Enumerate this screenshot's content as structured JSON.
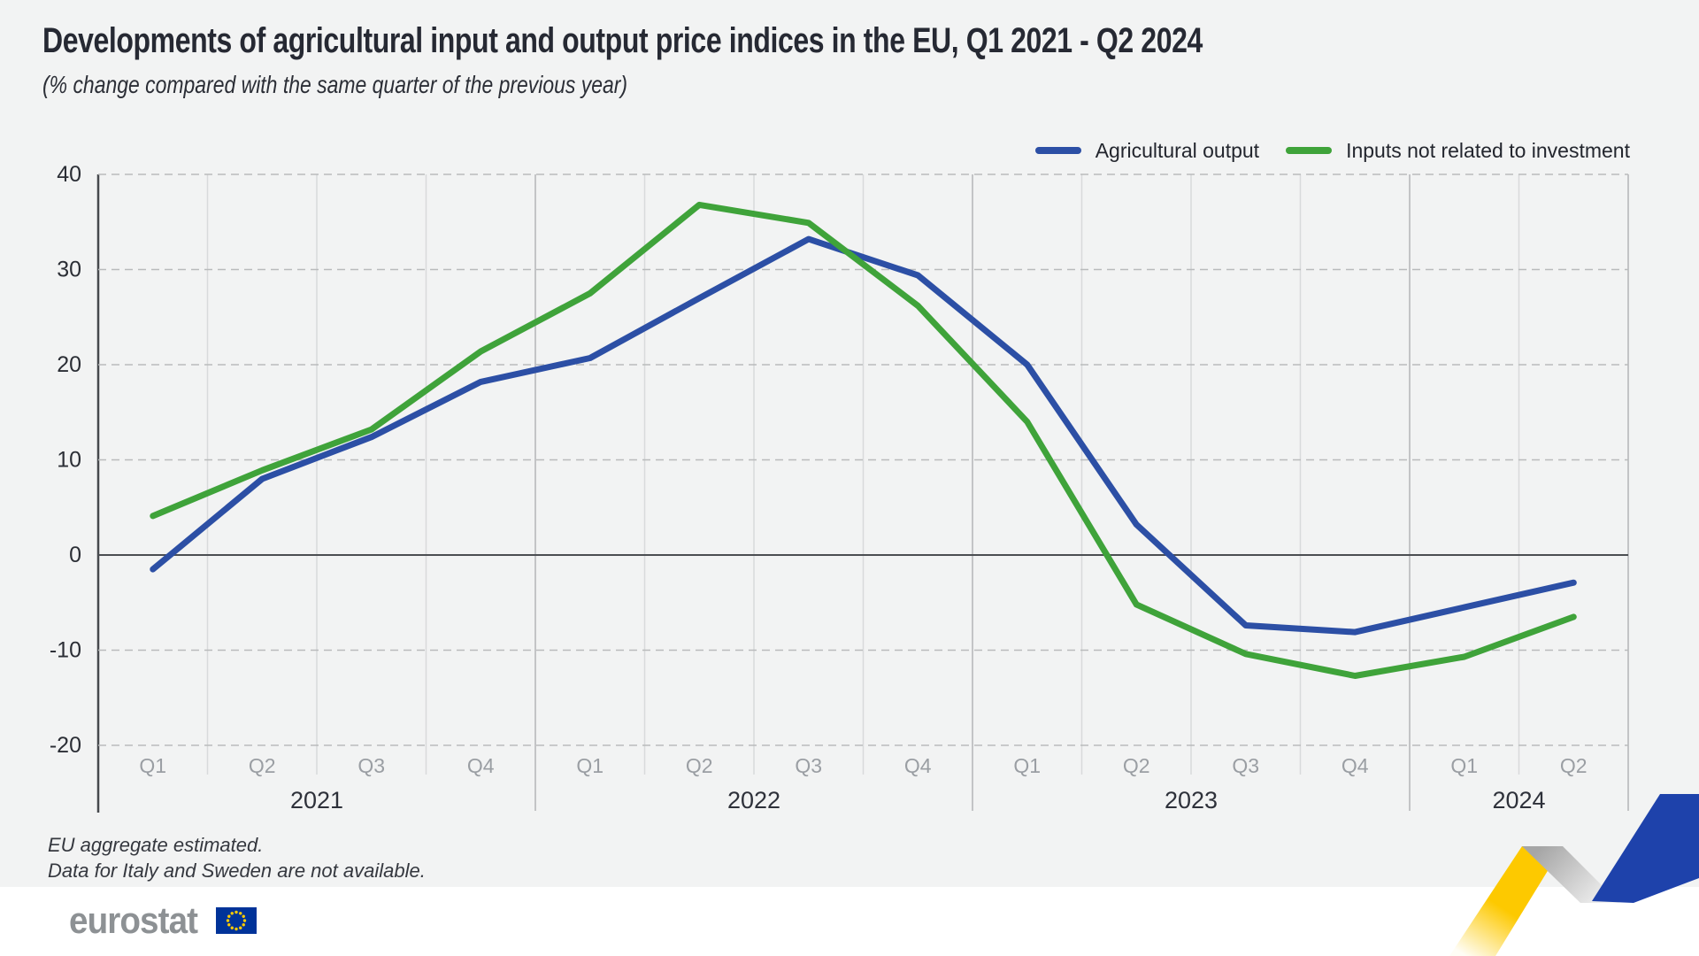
{
  "header": {
    "title": "Developments of agricultural input and output price indices in the EU, Q1 2021 - Q2 2024",
    "subtitle": "(% change compared with the same quarter of the previous year)"
  },
  "chart_data": {
    "type": "line",
    "quarters": [
      "Q1",
      "Q2",
      "Q3",
      "Q4",
      "Q1",
      "Q2",
      "Q3",
      "Q4",
      "Q1",
      "Q2",
      "Q3",
      "Q4",
      "Q1",
      "Q2"
    ],
    "year_groups": [
      {
        "label": "2021",
        "quarters": 4
      },
      {
        "label": "2022",
        "quarters": 4
      },
      {
        "label": "2023",
        "quarters": 4
      },
      {
        "label": "2024",
        "quarters": 2
      }
    ],
    "series": [
      {
        "name": "Agricultural output",
        "color": "#2c4fa5",
        "values": [
          -1.5,
          8.0,
          12.4,
          18.2,
          20.7,
          27.0,
          33.2,
          29.4,
          20.0,
          3.2,
          -7.4,
          -8.1,
          -5.5,
          -2.9
        ]
      },
      {
        "name": "Inputs not related to investment",
        "color": "#3fa33a",
        "values": [
          4.1,
          8.9,
          13.2,
          21.4,
          27.5,
          36.8,
          34.9,
          26.2,
          14.0,
          -5.2,
          -10.4,
          -12.7,
          -10.7,
          -6.5
        ]
      }
    ],
    "y_ticks": [
      40,
      30,
      20,
      10,
      0,
      -10,
      -20
    ],
    "ylim": [
      -20,
      40
    ],
    "grid": "horizontal dashed lines every 10, vertical line at every quarter boundary, solid zero line",
    "legend_position": "top-right"
  },
  "footnotes": [
    "EU aggregate estimated.",
    "Data for Italy and Sweden are not available."
  ],
  "footer": {
    "logo_text": "eurostat",
    "eu_flag": {
      "blue": "#003399",
      "stars": "#ffcc00"
    },
    "decoration": {
      "yellow": "#fdc900",
      "blue": "#1e42ab",
      "gray_dark": "#a6a6a6",
      "gray_light": "#f2f2f2"
    }
  }
}
